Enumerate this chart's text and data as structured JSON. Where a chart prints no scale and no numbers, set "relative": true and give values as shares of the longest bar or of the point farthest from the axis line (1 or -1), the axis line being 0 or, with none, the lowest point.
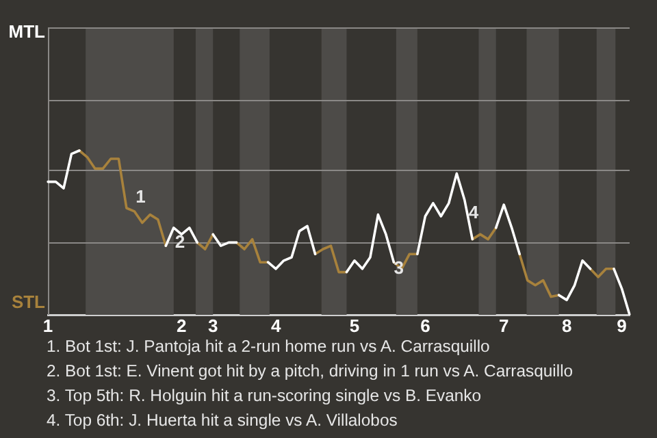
{
  "chart_data": {
    "type": "line",
    "relative": true,
    "categories": [
      "1",
      null,
      null,
      null,
      null,
      null,
      null,
      null,
      null,
      null,
      null,
      null,
      null,
      null,
      null,
      null,
      null,
      "2",
      null,
      null,
      null,
      "3",
      null,
      null,
      null,
      null,
      null,
      null,
      null,
      "4",
      null,
      null,
      null,
      null,
      null,
      null,
      null,
      null,
      null,
      "5",
      null,
      null,
      null,
      null,
      null,
      null,
      null,
      null,
      "6",
      null,
      null,
      null,
      null,
      null,
      null,
      null,
      null,
      null,
      "7",
      null,
      null,
      null,
      null,
      null,
      null,
      null,
      "8",
      null,
      null,
      null,
      null,
      null,
      null,
      "9",
      null
    ],
    "series": [
      {
        "color": "#ffffff",
        "values": [
          0.81,
          0.81,
          0.77,
          0.98,
          1,
          null,
          null,
          null,
          null,
          null,
          null,
          null,
          null,
          null,
          null,
          0.42,
          0.53,
          0.49,
          0.53,
          0.44,
          null,
          0.49,
          0.42,
          0.44,
          0.44,
          null,
          null,
          null,
          0.32,
          0.28,
          0.33,
          0.35,
          0.51,
          0.54,
          0.37,
          null,
          null,
          null,
          0.26,
          0.33,
          0.28,
          0.35,
          0.61,
          0.49,
          0.32,
          null,
          null,
          0.37,
          0.6,
          0.68,
          0.6,
          0.68,
          0.86,
          0.7,
          0.46,
          null,
          null,
          0.53,
          0.67,
          0.53,
          0.37,
          null,
          null,
          null,
          null,
          0.12,
          0.09,
          0.18,
          0.33,
          0.28,
          null,
          null,
          0.28,
          0.16,
          0
        ]
      },
      {
        "color": "#a8823c",
        "values": [
          null,
          null,
          null,
          null,
          1,
          0.96,
          0.89,
          0.89,
          0.95,
          0.95,
          0.65,
          0.63,
          0.56,
          0.61,
          0.58,
          0.42,
          null,
          null,
          null,
          0.44,
          0.4,
          0.49,
          null,
          null,
          0.44,
          0.4,
          0.46,
          0.32,
          0.32,
          null,
          null,
          null,
          null,
          null,
          0.37,
          0.4,
          0.42,
          0.26,
          0.26,
          null,
          null,
          null,
          null,
          null,
          0.32,
          0.28,
          0.37,
          0.37,
          null,
          null,
          null,
          null,
          null,
          null,
          0.46,
          0.49,
          0.46,
          0.53,
          null,
          null,
          0.37,
          0.21,
          0.18,
          0.21,
          0.11,
          0.12,
          null,
          null,
          null,
          0.28,
          0.23,
          0.28,
          0.28,
          null,
          null
        ]
      }
    ],
    "ref_lines": [
      {
        "axis": "y",
        "value": 0.44,
        "color": "#8a8886"
      },
      {
        "axis": "y",
        "value": 0.88,
        "color": "#8a8886"
      },
      {
        "axis": "y",
        "value": 1.31,
        "color": "#8a8886"
      },
      {
        "axis": "y",
        "value": 1.75,
        "color": "#8a8886"
      }
    ],
    "marker": "none",
    "line_style": "solid",
    "legend": false,
    "annotations": [
      "MTL",
      "STL",
      "1",
      "2",
      "3",
      "4",
      "1. Bot 1st: J. Pantoja hit a 2-run home run vs A. Carrasquillo",
      "2. Bot 1st: E. Vinent got hit by a pitch, driving in 1 run vs A. Carrasquillo",
      "3. Top 5th: R. Holguin hit a run-scoring single vs B. Evanko",
      "4. Top 6th: J. Huerta hit a single vs A. Villalobos"
    ]
  }
}
